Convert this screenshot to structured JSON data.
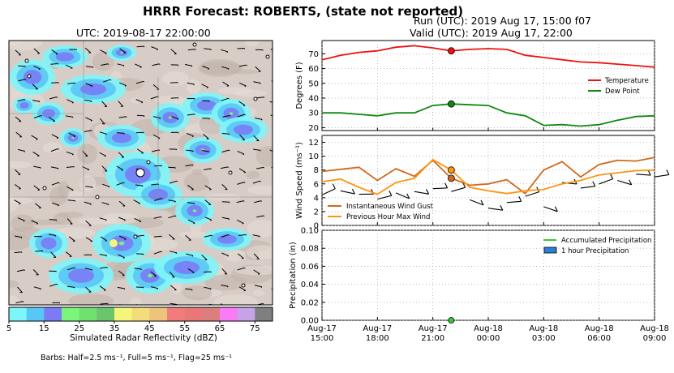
{
  "figure": {
    "title": "HRRR Forecast: ROBERTS, (state not reported)",
    "run_text": "Run (UTC): 2019 Aug 17, 15:00 f07",
    "valid_text": "Valid (UTC): 2019 Aug 17, 22:00"
  },
  "map": {
    "title": "UTC: 2019-08-17 22:00:00",
    "colorbar_label": "Simulated Radar Reflectivity (dBZ)",
    "colorbar_ticks": [
      "5",
      "15",
      "25",
      "35",
      "45",
      "55",
      "65",
      "75"
    ],
    "colorbar_colors": [
      "#7ef5f8",
      "#59c7f5",
      "#7b7bf5",
      "#7bf57b",
      "#70e070",
      "#6cc46c",
      "#f5f57b",
      "#f3dc7a",
      "#eec37a",
      "#f37b7b",
      "#ea7777",
      "#dd7e7e",
      "#f97cf6",
      "#c6a3e6",
      "#7f7f7f"
    ],
    "barbs_note": "Barbs: Half=2.5 ms⁻¹, Full=5 ms⁻¹, Flag=25 ms⁻¹"
  },
  "chart_data": [
    {
      "type": "line",
      "ylabel": "Degrees (F)",
      "ylim": [
        18,
        79
      ],
      "yticks": [
        20,
        30,
        40,
        50,
        60,
        70
      ],
      "x_hours_from_start": [
        0,
        1,
        2,
        3,
        4,
        5,
        6,
        7,
        8,
        9,
        10,
        11,
        12,
        13,
        14,
        15,
        16,
        17,
        18
      ],
      "legend_position": "center-right",
      "series": [
        {
          "name": "Temperature",
          "color": "#ee1111",
          "values": [
            66,
            69,
            71,
            72,
            74.5,
            75.5,
            74,
            72,
            73,
            73.5,
            73,
            69,
            67.5,
            66,
            64.5,
            64,
            63,
            62,
            61
          ]
        },
        {
          "name": "Dew Point",
          "color": "#118811",
          "values": [
            30,
            30,
            29,
            28,
            30,
            30,
            35,
            36,
            35.5,
            35,
            30,
            28,
            21.5,
            22,
            21,
            22,
            25,
            27.5,
            28
          ]
        }
      ],
      "marker_index": 7
    },
    {
      "type": "line",
      "ylabel": "Wind Speed (ms⁻¹)",
      "ylim": [
        0,
        13
      ],
      "yticks": [
        0,
        2,
        4,
        6,
        8,
        10,
        12
      ],
      "legend_position": "bottom-left",
      "series": [
        {
          "name": "Instantaneous Wind Gust",
          "color": "#d2691e",
          "values": [
            7.8,
            8.1,
            8.4,
            6.5,
            8.2,
            7.1,
            9.4,
            6.8,
            5.8,
            6.0,
            6.6,
            4.6,
            8.0,
            9.2,
            7.0,
            8.8,
            9.4,
            9.3,
            9.8
          ]
        },
        {
          "name": "Previous Hour Max Wind",
          "color": "#ff9411",
          "values": [
            6.3,
            6.7,
            5.5,
            4.5,
            6.2,
            6.8,
            9.5,
            8.0,
            5.5,
            5.0,
            4.6,
            5.0,
            5.2,
            6.0,
            6.5,
            7.3,
            7.6,
            7.9,
            8.0
          ]
        }
      ],
      "marker_index": 7,
      "barbs_y": [
        4.4,
        5.0,
        4.5,
        3.8,
        4.7,
        4.9,
        5.3,
        4.9,
        3.7,
        2.5,
        3.3,
        4.2,
        2.7,
        6.2,
        5.4,
        6.0,
        6.5,
        7.4,
        7.0
      ]
    },
    {
      "type": "bar",
      "ylabel": "Precipitation (in)",
      "ylim": [
        0,
        0.1
      ],
      "yticks": [
        "0.00",
        "0.02",
        "0.04",
        "0.06",
        "0.08",
        "0.10"
      ],
      "legend_position": "top-right",
      "series": [
        {
          "name": "Accumulated Precipitation",
          "color": "#33cc33",
          "values": [
            0,
            0,
            0,
            0,
            0,
            0,
            0,
            0,
            0,
            0,
            0,
            0,
            0,
            0,
            0,
            0,
            0,
            0,
            0
          ]
        },
        {
          "name": "1 hour Precipitation",
          "color": "#2a7fd4",
          "values": [
            0,
            0,
            0,
            0,
            0,
            0,
            0,
            0,
            0,
            0,
            0,
            0,
            0,
            0,
            0,
            0,
            0,
            0,
            0
          ]
        }
      ],
      "marker_index": 7
    }
  ],
  "x_axis": {
    "ticks": [
      {
        "date": "Aug-17",
        "time": "15:00"
      },
      {
        "date": "Aug-17",
        "time": "18:00"
      },
      {
        "date": "Aug-17",
        "time": "21:00"
      },
      {
        "date": "Aug-18",
        "time": "00:00"
      },
      {
        "date": "Aug-18",
        "time": "03:00"
      },
      {
        "date": "Aug-18",
        "time": "06:00"
      },
      {
        "date": "Aug-18",
        "time": "09:00"
      }
    ]
  }
}
